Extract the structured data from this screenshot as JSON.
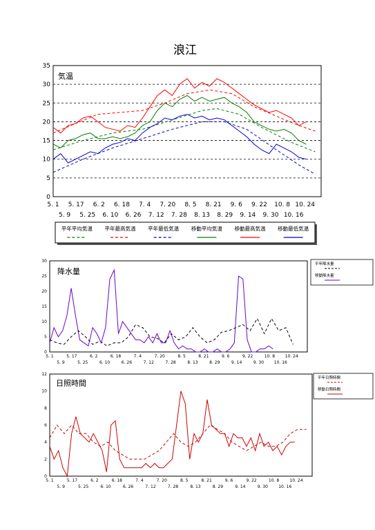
{
  "page": {
    "title": "浪江"
  },
  "chart_data": [
    {
      "type": "line",
      "label": "気温",
      "ylim": [
        0,
        35
      ],
      "yticks": [
        "0",
        "5",
        "10",
        "15",
        "20",
        "25",
        "30",
        "35"
      ],
      "x_ticks_top": [
        "5. 1",
        "5. 17",
        "6. 2",
        "6. 18",
        "7. 4",
        "7. 20",
        "8. 5",
        "8. 21",
        "9. 6",
        "9. 22",
        "10. 8",
        "10. 24"
      ],
      "x_ticks_bottom": [
        "5. 9",
        "5. 25",
        "6. 10",
        "6. 26",
        "7. 12",
        "7. 28",
        "8. 13",
        "8. 29",
        "9. 14",
        "9. 30",
        "10. 16"
      ],
      "grid": "horizontal-dashed",
      "legend_position": "bottom",
      "legend": [
        {
          "name": "平年平均気温",
          "color": "#008000",
          "dash": true
        },
        {
          "name": "平年最高気温",
          "color": "#ff0000",
          "dash": true
        },
        {
          "name": "平年最低気温",
          "color": "#0000cc",
          "dash": true
        },
        {
          "name": "移動平均気温",
          "color": "#008000",
          "dash": false
        },
        {
          "name": "移動最高気温",
          "color": "#ff0000",
          "dash": false
        },
        {
          "name": "移動最低気温",
          "color": "#0000cc",
          "dash": false
        }
      ],
      "series": [
        {
          "key": "normal_mean",
          "color": "#008000",
          "dash": true,
          "x": [
            0,
            20,
            40,
            60,
            80,
            100,
            110,
            125,
            140,
            160,
            176
          ],
          "y": [
            12.5,
            15,
            17,
            18,
            20.5,
            23,
            23.5,
            22,
            18.5,
            14.5,
            12
          ]
        },
        {
          "key": "normal_max",
          "color": "#ff0000",
          "dash": true,
          "x": [
            0,
            15,
            30,
            45,
            60,
            75,
            90,
            105,
            120,
            135,
            150,
            165,
            176
          ],
          "y": [
            17,
            19.5,
            22,
            22.5,
            23,
            25,
            27.5,
            28.5,
            27.5,
            24,
            21.5,
            19,
            17.5
          ]
        },
        {
          "key": "normal_min",
          "color": "#0000cc",
          "dash": true,
          "x": [
            0,
            20,
            40,
            60,
            80,
            100,
            115,
            130,
            150,
            165,
            176
          ],
          "y": [
            6.5,
            10,
            13,
            15.5,
            18,
            20,
            20,
            18,
            12.5,
            8.5,
            6
          ]
        },
        {
          "key": "moving_mean",
          "color": "#008000",
          "dash": false,
          "x": [
            0,
            5,
            10,
            15,
            20,
            25,
            30,
            35,
            40,
            45,
            50,
            55,
            60,
            65,
            70,
            75,
            80,
            85,
            90,
            95,
            100,
            105,
            110,
            115,
            120,
            125,
            130,
            135,
            140,
            145,
            150,
            155,
            160,
            165,
            170
          ],
          "y": [
            14,
            13,
            15,
            15.5,
            16.5,
            17,
            15.5,
            15.5,
            16,
            15.5,
            16,
            17,
            19,
            20,
            23,
            25,
            24,
            26,
            27,
            25.5,
            26.5,
            25.5,
            26,
            26.5,
            25,
            24,
            22.5,
            20,
            19,
            18,
            17.5,
            18,
            17,
            15,
            14
          ]
        },
        {
          "key": "moving_max",
          "color": "#ff0000",
          "dash": false,
          "x": [
            0,
            5,
            10,
            15,
            20,
            25,
            30,
            35,
            40,
            45,
            50,
            55,
            60,
            65,
            70,
            75,
            80,
            85,
            90,
            95,
            100,
            105,
            110,
            115,
            120,
            125,
            130,
            135,
            140,
            145,
            150,
            155,
            160,
            165,
            170
          ],
          "y": [
            18.5,
            17,
            19,
            19.5,
            21,
            21.5,
            20,
            18.5,
            18,
            17.5,
            19,
            18.5,
            21,
            24,
            27,
            28.5,
            27,
            30,
            31.5,
            29,
            30.5,
            29.5,
            31.5,
            30.5,
            29,
            27.5,
            26,
            24.5,
            23.5,
            22.5,
            23,
            22,
            21,
            19,
            20
          ]
        },
        {
          "key": "moving_min",
          "color": "#0000cc",
          "dash": false,
          "x": [
            0,
            5,
            10,
            15,
            20,
            25,
            30,
            35,
            40,
            45,
            50,
            55,
            60,
            65,
            70,
            75,
            80,
            85,
            90,
            95,
            100,
            105,
            110,
            115,
            120,
            125,
            130,
            135,
            140,
            145,
            150,
            155,
            160,
            165,
            170
          ],
          "y": [
            10,
            11.5,
            9,
            10,
            11,
            12,
            11.5,
            13,
            14,
            14.5,
            15.5,
            15,
            17,
            18.5,
            19.5,
            21,
            20.5,
            21.5,
            22,
            21,
            21.5,
            20.5,
            21,
            20.5,
            19,
            17.5,
            16,
            14,
            12.5,
            11.5,
            14,
            13,
            12,
            10.5,
            10
          ]
        }
      ]
    },
    {
      "type": "line",
      "label": "降水量",
      "ylim": [
        0,
        30
      ],
      "yticks": [
        "0",
        "5",
        "10",
        "15",
        "20",
        "25",
        "30"
      ],
      "x_ticks_top": [
        "5. 1",
        "5. 17",
        "6. 2",
        "6. 18",
        "7. 4",
        "7. 20",
        "8. 5",
        "8. 21",
        "9. 6",
        "9. 22",
        "10. 8",
        "10. 24"
      ],
      "x_ticks_bottom": [
        "5. 9",
        "5. 25",
        "6. 10",
        "6. 26",
        "7. 12",
        "7. 28",
        "8. 13",
        "8. 29",
        "9. 14",
        "9. 30",
        "10. 16"
      ],
      "legend_position": "right",
      "legend": [
        {
          "name": "平年降水量",
          "color": "#000000",
          "dash": true
        },
        {
          "name": "移動降水量",
          "color": "#6600cc",
          "dash": false
        }
      ],
      "series": [
        {
          "key": "normal",
          "color": "#000000",
          "dash": true,
          "x": [
            0,
            5,
            10,
            15,
            20,
            25,
            30,
            35,
            40,
            45,
            50,
            55,
            60,
            65,
            70,
            75,
            80,
            85,
            90,
            95,
            100,
            105,
            110,
            115,
            120,
            125,
            130,
            135,
            140,
            145,
            150,
            155,
            160,
            165,
            170
          ],
          "y": [
            4,
            3,
            2.5,
            5,
            7,
            5,
            2.5,
            3.5,
            2,
            3,
            3,
            5,
            9,
            8,
            5,
            4.5,
            3,
            6,
            4,
            5,
            8,
            5,
            3,
            4,
            6.5,
            7,
            8,
            9,
            7,
            11,
            6,
            11,
            7,
            8,
            2.5
          ]
        },
        {
          "key": "moving",
          "color": "#6600cc",
          "dash": false,
          "x": [
            0,
            3,
            6,
            9,
            12,
            15,
            18,
            21,
            24,
            27,
            30,
            33,
            36,
            39,
            42,
            45,
            48,
            51,
            54,
            57,
            60,
            63,
            66,
            69,
            72,
            75,
            78,
            81,
            84,
            87,
            90,
            93,
            96,
            99,
            102,
            105,
            108,
            111,
            114,
            117,
            120,
            123,
            126,
            129,
            132,
            135,
            138,
            141,
            144,
            147,
            150,
            153,
            156
          ],
          "y": [
            3,
            8,
            5,
            7,
            12,
            21,
            12,
            4,
            3,
            2,
            8,
            6,
            3,
            8,
            24,
            27,
            6,
            10,
            8,
            6,
            4,
            4,
            3,
            5,
            3,
            6,
            3,
            3,
            7,
            3,
            1,
            2,
            1,
            1,
            0,
            0,
            1,
            0,
            0,
            1,
            0,
            0,
            1,
            3,
            25,
            24,
            4,
            0,
            0,
            1,
            1,
            2,
            1
          ]
        }
      ]
    },
    {
      "type": "line",
      "label": "日照時間",
      "ylim": [
        0,
        12
      ],
      "yticks": [
        "0",
        "2",
        "4",
        "6",
        "8",
        "10",
        "12"
      ],
      "x_ticks_top": [
        "5. 1",
        "5. 17",
        "6. 2",
        "6. 18",
        "7. 4",
        "7. 20",
        "8. 5",
        "8. 21",
        "9. 6",
        "9. 22",
        "10. 8",
        "10. 24"
      ],
      "x_ticks_bottom": [
        "5. 9",
        "5. 25",
        "6. 10",
        "6. 26",
        "7. 12",
        "7. 28",
        "8. 13",
        "8. 29",
        "9. 14",
        "9. 30",
        "10. 16"
      ],
      "legend_position": "right",
      "legend": [
        {
          "name": "平年日照時間",
          "color": "#cc0000",
          "dash": true
        },
        {
          "name": "移動日照時間",
          "color": "#cc0000",
          "dash": false
        }
      ],
      "series": [
        {
          "key": "normal",
          "color": "#cc0000",
          "dash": true,
          "x": [
            0,
            5,
            10,
            15,
            20,
            25,
            30,
            35,
            40,
            45,
            50,
            55,
            60,
            65,
            70,
            75,
            80,
            85,
            90,
            95,
            100,
            105,
            110,
            115,
            120,
            125,
            130,
            135,
            140,
            145,
            150,
            155,
            160,
            165,
            170,
            176
          ],
          "y": [
            4.5,
            6,
            5,
            6,
            5,
            5,
            4,
            3.5,
            4,
            3,
            2.5,
            2,
            2,
            2,
            2.5,
            3,
            4,
            5,
            4,
            3.5,
            4,
            5,
            6,
            5.5,
            5,
            4,
            3.5,
            3,
            3.5,
            4,
            3.5,
            3.5,
            4,
            5,
            5.5,
            5.5
          ]
        },
        {
          "key": "moving",
          "color": "#cc0000",
          "dash": false,
          "x": [
            0,
            3,
            6,
            9,
            12,
            15,
            18,
            21,
            24,
            27,
            30,
            33,
            36,
            39,
            42,
            45,
            48,
            51,
            54,
            57,
            60,
            63,
            66,
            69,
            72,
            75,
            78,
            81,
            84,
            87,
            90,
            93,
            96,
            99,
            102,
            105,
            108,
            111,
            114,
            117,
            120,
            123,
            126,
            129,
            132,
            135,
            138,
            141,
            144,
            147,
            150,
            153,
            156,
            159,
            162,
            165,
            168
          ],
          "y": [
            3.5,
            2,
            3,
            1,
            0,
            5,
            7,
            5,
            4.5,
            4,
            5,
            4,
            3,
            0.5,
            6,
            6.5,
            2,
            1,
            1,
            1,
            1,
            1,
            1.5,
            1,
            1.5,
            1,
            1,
            1.5,
            2,
            6,
            10,
            8.5,
            2,
            5,
            4,
            5,
            9,
            6,
            5.5,
            5,
            5,
            3.5,
            5,
            4.5,
            4.5,
            3.5,
            4.5,
            3,
            5,
            3.5,
            4,
            3,
            3.5,
            2.5,
            3.5,
            4,
            4
          ]
        }
      ]
    }
  ]
}
